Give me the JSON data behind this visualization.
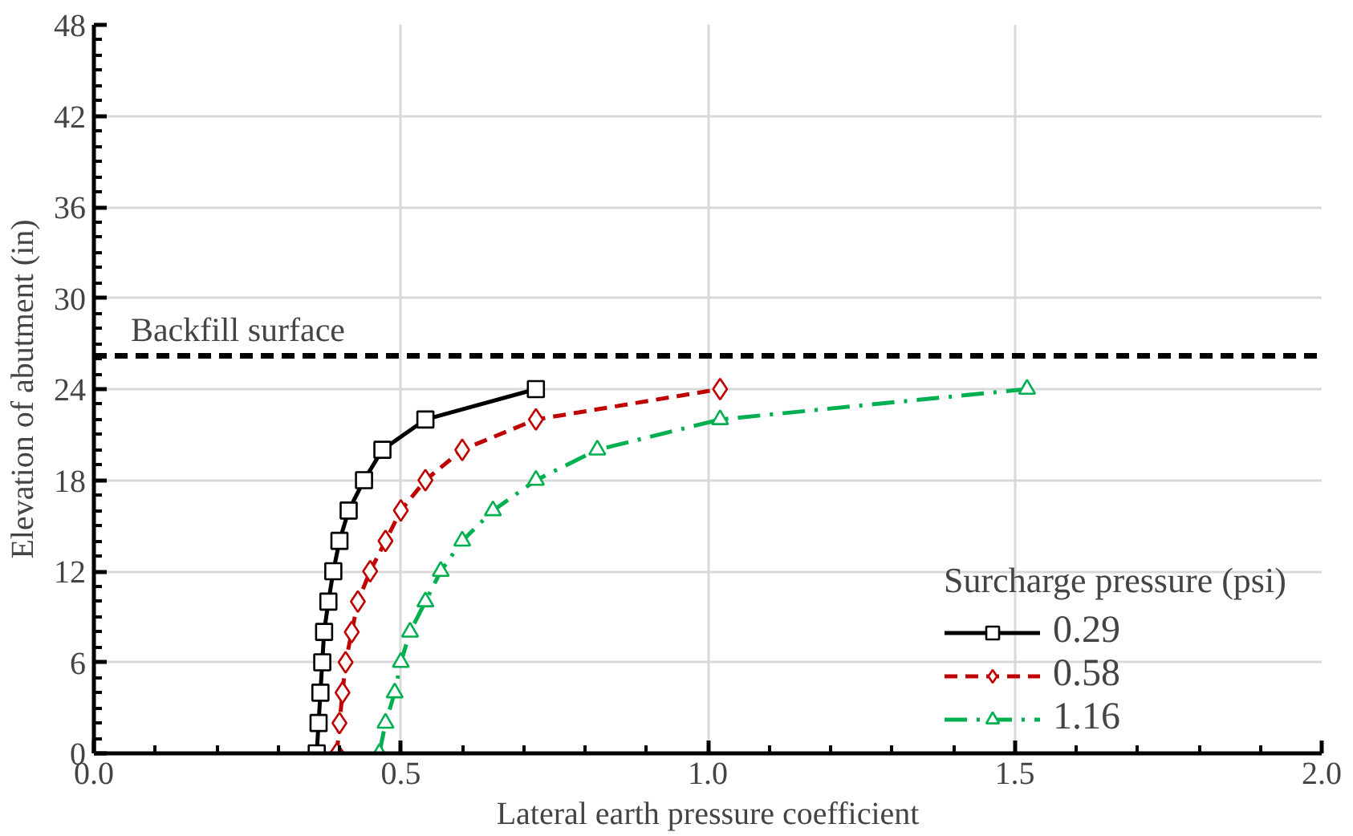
{
  "chart_data": {
    "type": "line",
    "xlabel": "Lateral earth pressure coefficient",
    "ylabel": "Elevation of abutment (in)",
    "legend_title": "Surcharge pressure (psi)",
    "legend": "right",
    "grid": true,
    "xlim": [
      0,
      2
    ],
    "xticks": [
      {
        "value": 0,
        "label": "0.0"
      },
      {
        "value": 0.5,
        "label": "0.5"
      },
      {
        "value": 1,
        "label": "1.0"
      },
      {
        "value": 1.5,
        "label": "1.5"
      },
      {
        "value": 2,
        "label": "2.0"
      }
    ],
    "ylim": [
      0,
      48
    ],
    "yticks": [
      0,
      6,
      12,
      18,
      24,
      30,
      36,
      42,
      48
    ],
    "series": [
      {
        "name": "0.29",
        "color": "#000000",
        "marker": "square",
        "line_style": "solid",
        "x": [
          0.363,
          0.366,
          0.369,
          0.372,
          0.375,
          0.382,
          0.39,
          0.4,
          0.415,
          0.44,
          0.47,
          0.54,
          0.72
        ],
        "values": [
          0,
          2,
          4,
          6,
          8,
          10,
          12,
          14,
          16,
          18,
          20,
          22,
          24
        ]
      },
      {
        "name": "0.58",
        "color": "#c00000",
        "marker": "diamond",
        "line_style": "dashed",
        "x": [
          0.396,
          0.4,
          0.405,
          0.41,
          0.42,
          0.43,
          0.45,
          0.475,
          0.5,
          0.54,
          0.6,
          0.72,
          1.02
        ],
        "values": [
          0,
          2,
          4,
          6,
          8,
          10,
          12,
          14,
          16,
          18,
          20,
          22,
          24
        ]
      },
      {
        "name": "1.16",
        "color": "#00b050",
        "marker": "triangle",
        "line_style": "dashdot",
        "x": [
          0.465,
          0.475,
          0.49,
          0.5,
          0.515,
          0.54,
          0.565,
          0.6,
          0.65,
          0.72,
          0.82,
          1.02,
          1.52
        ],
        "values": [
          0,
          2,
          4,
          6,
          8,
          10,
          12,
          14,
          16,
          18,
          20,
          22,
          24
        ]
      }
    ],
    "ref_lines": [
      {
        "axis": "y",
        "value": 26.2,
        "label": "Backfill surface",
        "color": "#000000",
        "line_style": "dashed"
      }
    ]
  }
}
